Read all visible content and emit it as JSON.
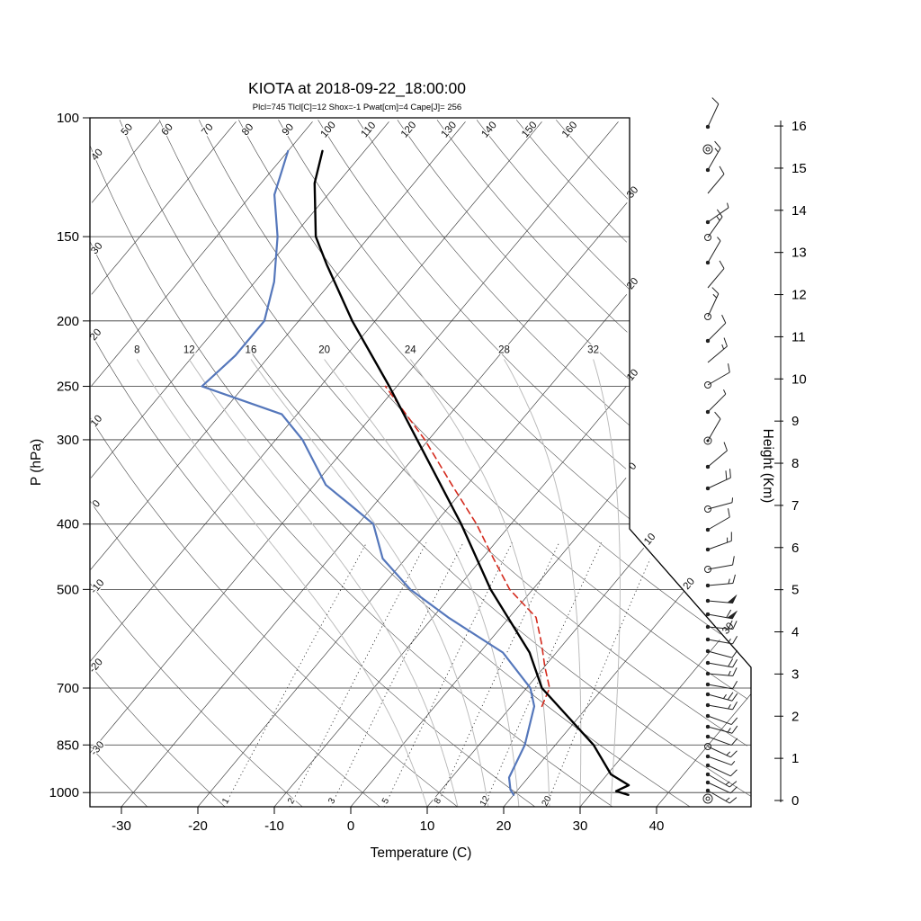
{
  "title": "KIOTA at 2018-09-22_18:00:00",
  "subtitle": "Plcl=745 Tlcl[C]=12 Shox=-1 Pwat[cm]=4 Cape[J]= 256",
  "axes": {
    "pressure_label": "P (hPa)",
    "pressure_ticks": [
      100,
      150,
      200,
      250,
      300,
      400,
      500,
      700,
      850,
      1000
    ],
    "temp_label": "Temperature (C)",
    "temp_ticks": [
      -30,
      -20,
      -10,
      0,
      10,
      20,
      30,
      40
    ],
    "height_label": "Height (Km)",
    "height_ticks": [
      0,
      1,
      2,
      3,
      4,
      5,
      6,
      7,
      8,
      9,
      10,
      11,
      12,
      13,
      14,
      15,
      16
    ]
  },
  "colors": {
    "temperature": "#000000",
    "dewpoint": "#5577bb",
    "parcel": "#d42b1e",
    "subtitle": "#c3512f"
  },
  "chart_data": {
    "type": "line",
    "subtype": "skew-t log-p atmospheric sounding",
    "station": "KIOTA",
    "time": "2018-09-22_18:00:00",
    "pressure_range_hPa": [
      100,
      1050
    ],
    "isotherm_values": [
      -100,
      -90,
      -80,
      -70,
      -60,
      -50,
      -40,
      -30,
      -20,
      -10,
      0,
      10,
      20,
      30,
      40
    ],
    "isotherm_edge_labels": [
      "30",
      "20",
      "10",
      "0",
      "10",
      "20",
      "30"
    ],
    "dry_adiabat_values": [
      -30,
      -20,
      -10,
      0,
      10,
      20,
      30,
      40,
      50,
      60,
      70,
      80,
      90,
      100,
      110,
      120,
      130,
      140,
      150,
      160
    ],
    "moist_adiabat_values": [
      8,
      12,
      16,
      20,
      24,
      28,
      32
    ],
    "mixing_ratio_values": [
      1,
      2,
      3,
      5,
      8,
      12,
      20
    ],
    "series": [
      {
        "name": "parcel",
        "units": "pressure_hPa_temperature_C",
        "points": [
          [
            745,
            14
          ],
          [
            700,
            13
          ],
          [
            650,
            10
          ],
          [
            600,
            7
          ],
          [
            550,
            3.5
          ],
          [
            500,
            -3
          ],
          [
            450,
            -8.5
          ],
          [
            400,
            -14.5
          ],
          [
            350,
            -22
          ],
          [
            300,
            -30.5
          ],
          [
            250,
            -41.5
          ]
        ]
      },
      {
        "name": "temperature",
        "units": "pressure_hPa_temperature_C",
        "points": [
          [
            1008,
            35
          ],
          [
            995,
            33
          ],
          [
            975,
            34
          ],
          [
            940,
            30.5
          ],
          [
            850,
            25
          ],
          [
            700,
            12
          ],
          [
            620,
            6.5
          ],
          [
            500,
            -5.5
          ],
          [
            400,
            -16.5
          ],
          [
            300,
            -31.5
          ],
          [
            250,
            -41
          ],
          [
            200,
            -53
          ],
          [
            165,
            -62.5
          ],
          [
            150,
            -67
          ],
          [
            125,
            -73
          ],
          [
            112,
            -75.5
          ]
        ]
      },
      {
        "name": "dewpoint",
        "units": "pressure_hPa_temperature_C",
        "points": [
          [
            1008,
            20
          ],
          [
            990,
            19
          ],
          [
            950,
            17.5
          ],
          [
            850,
            16
          ],
          [
            745,
            13
          ],
          [
            700,
            10.5
          ],
          [
            620,
            3
          ],
          [
            550,
            -8
          ],
          [
            500,
            -16
          ],
          [
            450,
            -23
          ],
          [
            400,
            -28
          ],
          [
            380,
            -32
          ],
          [
            350,
            -38.5
          ],
          [
            300,
            -46.5
          ],
          [
            275,
            -52
          ],
          [
            250,
            -65.5
          ],
          [
            225,
            -64.5
          ],
          [
            200,
            -64.5
          ],
          [
            175,
            -67.5
          ],
          [
            150,
            -72
          ],
          [
            130,
            -77
          ],
          [
            112,
            -80
          ]
        ]
      }
    ],
    "wind_barbs": {
      "format": [
        "y_px",
        "staff_angle_deg",
        "ticks(F=full,H=half,G=flag)",
        "marker(d=dot,o=circle,oo=double-circle,od=circled-dot)"
      ],
      "levels": [
        [
          141,
          25,
          "F",
          "d"
        ],
        [
          166,
          0,
          "",
          "oo"
        ],
        [
          189,
          30,
          "FH",
          "d"
        ],
        [
          215,
          40,
          "F",
          ""
        ],
        [
          247,
          55,
          "H",
          "d"
        ],
        [
          264,
          35,
          "FH",
          "o"
        ],
        [
          292,
          30,
          "H",
          "d"
        ],
        [
          320,
          40,
          "F",
          ""
        ],
        [
          352,
          25,
          "FH",
          "o"
        ],
        [
          379,
          45,
          "F",
          "d"
        ],
        [
          403,
          50,
          "FH",
          ""
        ],
        [
          428,
          60,
          "F",
          "o"
        ],
        [
          458,
          45,
          "H",
          "d"
        ],
        [
          490,
          30,
          "F",
          "od"
        ],
        [
          519,
          50,
          "F",
          "d"
        ],
        [
          543,
          65,
          "FF",
          "d"
        ],
        [
          566,
          75,
          "H",
          "o"
        ],
        [
          589,
          60,
          "F",
          "d"
        ],
        [
          611,
          70,
          "FH",
          "d"
        ],
        [
          633,
          80,
          "F",
          "o"
        ],
        [
          651,
          85,
          "FH",
          "d"
        ],
        [
          668,
          95,
          "G",
          "d"
        ],
        [
          683,
          100,
          "GF",
          "d"
        ],
        [
          697,
          95,
          "FF",
          "d"
        ],
        [
          711,
          100,
          "FH",
          "d"
        ],
        [
          724,
          105,
          "F",
          "d"
        ],
        [
          737,
          100,
          "FF",
          "d"
        ],
        [
          749,
          95,
          "FH",
          "d"
        ],
        [
          761,
          100,
          "F",
          "d"
        ],
        [
          772,
          105,
          "FFH",
          "d"
        ],
        [
          784,
          100,
          "FH",
          "d"
        ],
        [
          796,
          110,
          "F",
          "d"
        ],
        [
          808,
          105,
          "FH",
          "d"
        ],
        [
          819,
          110,
          "F",
          "d"
        ],
        [
          830,
          115,
          "FH",
          "o"
        ],
        [
          841,
          110,
          "H",
          "d"
        ],
        [
          851,
          115,
          "F",
          "d"
        ],
        [
          861,
          120,
          "FH",
          "d"
        ],
        [
          870,
          115,
          "F",
          "d"
        ],
        [
          879,
          120,
          "FH",
          "d"
        ],
        [
          888,
          0,
          "",
          "oo"
        ]
      ]
    }
  }
}
